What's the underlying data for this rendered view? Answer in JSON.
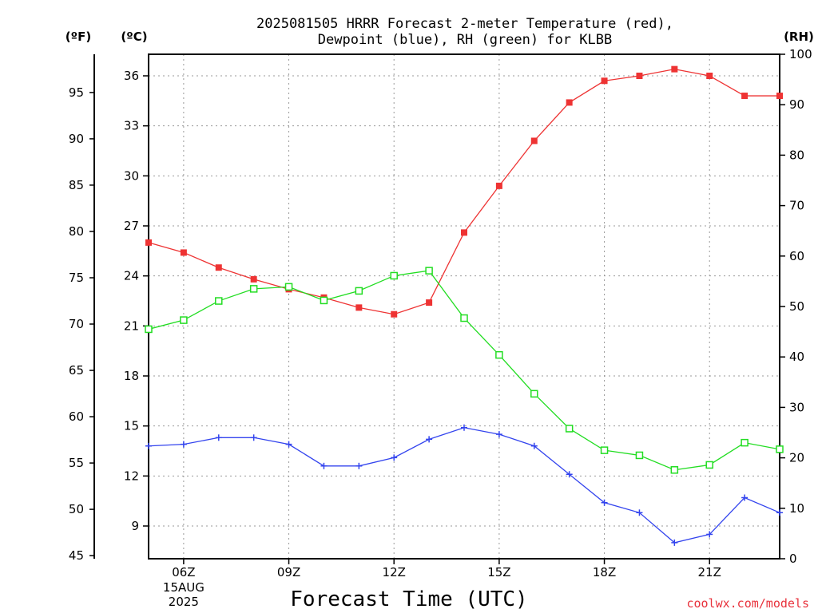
{
  "title_line1": "2025081505 HRRR Forecast 2-meter Temperature (red),",
  "title_line2": "Dewpoint (blue), RH (green) for KLBB",
  "credit": "coolwx.com/models",
  "colors": {
    "temperature": "#ee3333",
    "dewpoint": "#3344ee",
    "rh": "#22dd22"
  },
  "chart_data": {
    "type": "line",
    "xlabel": "Forecast Time (UTC)",
    "x_hours": [
      5,
      6,
      7,
      8,
      9,
      10,
      11,
      12,
      13,
      14,
      15,
      16,
      17,
      18,
      19,
      20,
      21,
      22,
      23
    ],
    "xlim": [
      5,
      23
    ],
    "x_ticks": [
      {
        "hour": 6,
        "label": "06Z",
        "sub1": "15AUG",
        "sub2": "2025"
      },
      {
        "hour": 9,
        "label": "09Z",
        "sub1": "",
        "sub2": ""
      },
      {
        "hour": 12,
        "label": "12Z",
        "sub1": "",
        "sub2": ""
      },
      {
        "hour": 15,
        "label": "15Z",
        "sub1": "",
        "sub2": ""
      },
      {
        "hour": 18,
        "label": "18Z",
        "sub1": "",
        "sub2": ""
      },
      {
        "hour": 21,
        "label": "21Z",
        "sub1": "",
        "sub2": ""
      }
    ],
    "celsius_axis": {
      "unit_label": "(ºC)",
      "ticks": [
        9,
        12,
        15,
        18,
        21,
        24,
        27,
        30,
        33,
        36
      ]
    },
    "fahrenheit_axis": {
      "unit_label": "(ºF)",
      "ticks": [
        45,
        50,
        55,
        60,
        65,
        70,
        75,
        80,
        85,
        90,
        95
      ]
    },
    "rh_axis": {
      "unit_label": "(RH)",
      "ticks": [
        0,
        10,
        20,
        30,
        40,
        50,
        60,
        70,
        80,
        90,
        100
      ],
      "ylim": [
        0,
        100
      ]
    },
    "series": [
      {
        "name": "Temperature",
        "unit": "C",
        "marker": "filled-square",
        "values": [
          26.0,
          25.4,
          24.5,
          23.8,
          23.2,
          22.7,
          22.1,
          21.7,
          22.4,
          26.6,
          29.4,
          32.1,
          34.4,
          35.7,
          36.0,
          36.4,
          36.0,
          34.8,
          34.8
        ]
      },
      {
        "name": "Dewpoint",
        "unit": "C",
        "marker": "plus",
        "values": [
          13.8,
          13.9,
          14.3,
          14.3,
          13.9,
          12.6,
          12.6,
          13.1,
          14.2,
          14.9,
          14.5,
          13.8,
          12.1,
          10.4,
          9.8,
          8.0,
          8.5,
          10.7,
          9.8
        ]
      },
      {
        "name": "RH",
        "unit": "%",
        "marker": "open-square",
        "values": [
          45.5,
          47.3,
          51.1,
          53.5,
          53.9,
          51.2,
          53.1,
          56.1,
          57.1,
          47.7,
          40.4,
          32.7,
          25.8,
          21.5,
          20.5,
          17.6,
          18.6,
          23.0,
          21.7
        ]
      }
    ]
  }
}
